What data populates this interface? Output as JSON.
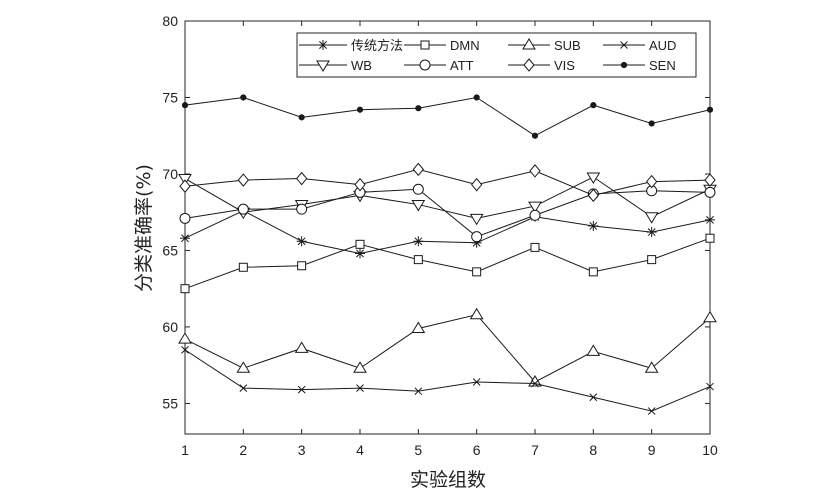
{
  "chart_data": {
    "type": "line",
    "title": "",
    "xlabel": "实验组数",
    "ylabel": "分类准确率(%)",
    "xlim": [
      1,
      10
    ],
    "ylim": [
      53,
      80
    ],
    "x": [
      1,
      2,
      3,
      4,
      5,
      6,
      7,
      8,
      9,
      10
    ],
    "xticks": [
      1,
      2,
      3,
      4,
      5,
      6,
      7,
      8,
      9,
      10
    ],
    "yticks": [
      55,
      60,
      65,
      70,
      75,
      80
    ],
    "grid": false,
    "legend_position": "top-right",
    "series": [
      {
        "name": "传统方法",
        "marker": "asterisk",
        "values": [
          65.8,
          67.6,
          65.6,
          64.8,
          65.6,
          65.5,
          67.2,
          66.6,
          66.2,
          67.0
        ]
      },
      {
        "name": "DMN",
        "marker": "square",
        "values": [
          62.5,
          63.9,
          64.0,
          65.4,
          64.4,
          63.6,
          65.2,
          63.6,
          64.4,
          65.8
        ]
      },
      {
        "name": "SUB",
        "marker": "triangle-up",
        "values": [
          59.2,
          57.3,
          58.6,
          57.3,
          59.9,
          60.8,
          56.4,
          58.4,
          57.3,
          60.6
        ]
      },
      {
        "name": "AUD",
        "marker": "x",
        "values": [
          58.5,
          56.0,
          55.9,
          56.0,
          55.8,
          56.4,
          56.3,
          55.4,
          54.5,
          56.1
        ]
      },
      {
        "name": "WB",
        "marker": "triangle-down",
        "values": [
          69.7,
          67.5,
          68.0,
          68.6,
          68.0,
          67.1,
          67.9,
          69.8,
          67.2,
          69.0
        ]
      },
      {
        "name": "ATT",
        "marker": "circle",
        "values": [
          67.1,
          67.7,
          67.7,
          68.8,
          69.0,
          65.9,
          67.3,
          68.7,
          68.9,
          68.8
        ]
      },
      {
        "name": "VIS",
        "marker": "diamond",
        "values": [
          69.2,
          69.6,
          69.7,
          69.3,
          70.3,
          69.3,
          70.2,
          68.6,
          69.5,
          69.6
        ]
      },
      {
        "name": "SEN",
        "marker": "dot",
        "values": [
          74.5,
          75.0,
          73.7,
          74.2,
          74.3,
          75.0,
          72.5,
          74.5,
          73.3,
          74.2
        ]
      }
    ]
  }
}
